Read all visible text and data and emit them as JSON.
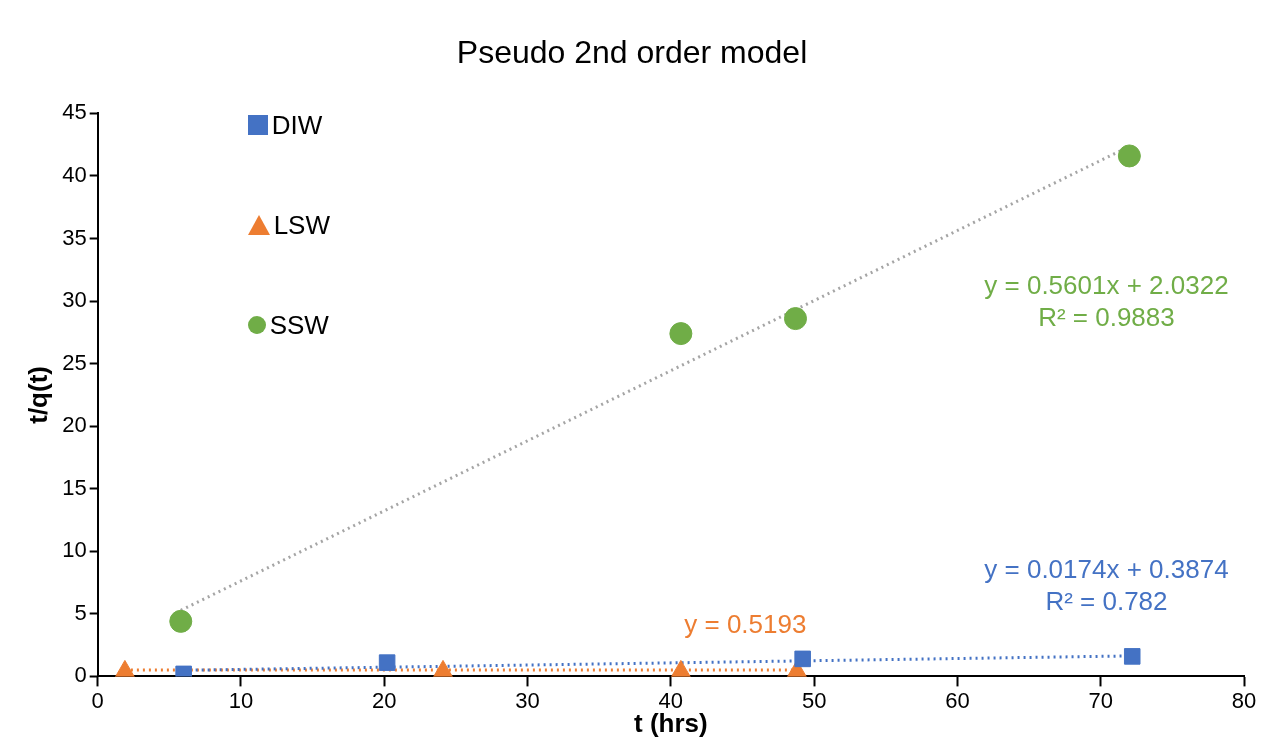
{
  "chart_data": {
    "type": "scatter",
    "title": "Pseudo 2nd order model",
    "xlabel": "t (hrs)",
    "ylabel": "t/q(t)",
    "xlim": [
      0,
      80
    ],
    "xticks": [
      0,
      10,
      20,
      30,
      40,
      50,
      60,
      70,
      80
    ],
    "ylim": [
      0,
      45
    ],
    "yticks": [
      0,
      5,
      10,
      15,
      20,
      25,
      30,
      35,
      40,
      45
    ],
    "grid": false,
    "legend": "top left",
    "series": [
      {
        "name": "DIW",
        "marker": "square",
        "color": "#4472c4",
        "x": [
          6.0,
          20.2,
          49.2,
          72.2
        ],
        "values": [
          0.2,
          1.1,
          1.4,
          1.6
        ]
      },
      {
        "name": "LSW",
        "marker": "triangle",
        "color": "#ed7d31",
        "x": [
          1.9,
          24.1,
          40.7,
          48.8
        ],
        "values": [
          0.4,
          0.4,
          0.4,
          0.4
        ]
      },
      {
        "name": "SSW",
        "marker": "circle",
        "color": "#70ad47",
        "x": [
          5.8,
          40.7,
          48.7,
          72.0
        ],
        "values": [
          4.4,
          27.4,
          28.6,
          41.6
        ]
      },
      {
        "type": "line",
        "marker": "none",
        "line_style": "dotted",
        "color": "#4472c4",
        "x": [
          6.0,
          72.2
        ],
        "values": [
          0.49,
          1.64
        ]
      },
      {
        "type": "line",
        "marker": "none",
        "line_style": "dotted",
        "color": "#ed7d31",
        "x": [
          1.9,
          48.8
        ],
        "values": [
          0.52,
          0.52
        ]
      },
      {
        "type": "line",
        "marker": "none",
        "line_style": "dotted",
        "color": "#a5a5a5",
        "x": [
          5.8,
          72.0
        ],
        "values": [
          5.28,
          42.36
        ]
      }
    ],
    "annotations": [
      "y = 0.0174x + 0.3874\nR² = 0.782",
      "y = 0.5193",
      "y = 0.5601x + 2.0322\nR² = 0.9883"
    ]
  }
}
